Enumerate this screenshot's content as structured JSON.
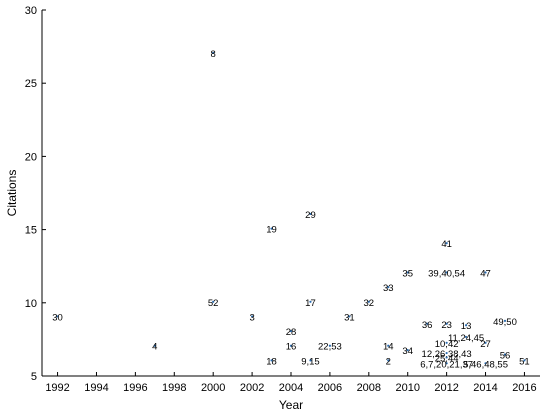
{
  "chart_data": {
    "type": "scatter",
    "title": "",
    "xlabel": "Year",
    "ylabel": "Citations",
    "xlim": [
      1991.2,
      2016.8
    ],
    "ylim": [
      5,
      30
    ],
    "xticks": [
      "1992",
      "1994",
      "1996",
      "1998",
      "2000",
      "2002",
      "2004",
      "2006",
      "2008",
      "2010",
      "2012",
      "2014",
      "2016"
    ],
    "yticks": [
      "5",
      "10",
      "15",
      "20",
      "25",
      "30"
    ],
    "grid": false,
    "legend": "none",
    "point_color": "#2b6cb0",
    "points": [
      {
        "x": 1992,
        "y": 9,
        "label": "30"
      },
      {
        "x": 1997,
        "y": 7,
        "label": "4"
      },
      {
        "x": 2000,
        "y": 27,
        "label": "8"
      },
      {
        "x": 2000,
        "y": 10,
        "label": "52"
      },
      {
        "x": 2002,
        "y": 9,
        "label": "3"
      },
      {
        "x": 2003,
        "y": 15,
        "label": "19"
      },
      {
        "x": 2003,
        "y": 6,
        "label": "18"
      },
      {
        "x": 2004,
        "y": 8,
        "label": "28"
      },
      {
        "x": 2004,
        "y": 7,
        "label": "16"
      },
      {
        "x": 2005,
        "y": 16,
        "label": "29"
      },
      {
        "x": 2005,
        "y": 10,
        "label": "17"
      },
      {
        "x": 2005,
        "y": 6,
        "label": "9,15"
      },
      {
        "x": 2006,
        "y": 7,
        "label": "22,53"
      },
      {
        "x": 2007,
        "y": 9,
        "label": "31"
      },
      {
        "x": 2008,
        "y": 10,
        "label": "32"
      },
      {
        "x": 2009,
        "y": 11,
        "label": "33"
      },
      {
        "x": 2009,
        "y": 7,
        "label": "14"
      },
      {
        "x": 2009,
        "y": 6,
        "label": "2"
      },
      {
        "x": 2010,
        "y": 12,
        "label": "35"
      },
      {
        "x": 2010,
        "y": 6.7,
        "label": "34"
      },
      {
        "x": 2011,
        "y": 8.5,
        "label": "36"
      },
      {
        "x": 2012,
        "y": 14,
        "label": "41"
      },
      {
        "x": 2012,
        "y": 12,
        "label": "39,40,54"
      },
      {
        "x": 2012,
        "y": 8.5,
        "label": "23"
      },
      {
        "x": 2012,
        "y": 7.2,
        "label": "10,42"
      },
      {
        "x": 2012,
        "y": 6.5,
        "label": "12,26,38,43"
      },
      {
        "x": 2012,
        "y": 6.2,
        "label": "25,44"
      },
      {
        "x": 2012,
        "y": 5.8,
        "label": "6,7,20,21,37"
      },
      {
        "x": 2013,
        "y": 8.4,
        "label": "13"
      },
      {
        "x": 2013,
        "y": 7.6,
        "label": "11,24,45"
      },
      {
        "x": 2014,
        "y": 12,
        "label": "47"
      },
      {
        "x": 2014,
        "y": 7.2,
        "label": "27"
      },
      {
        "x": 2014,
        "y": 5.8,
        "label": "5,46,48,55"
      },
      {
        "x": 2015,
        "y": 8.7,
        "label": "49,50"
      },
      {
        "x": 2015,
        "y": 6.4,
        "label": "56"
      },
      {
        "x": 2016,
        "y": 6,
        "label": "51"
      }
    ]
  }
}
